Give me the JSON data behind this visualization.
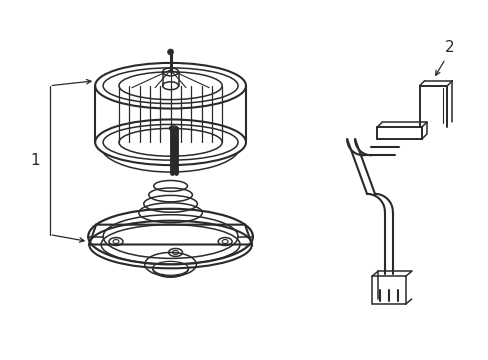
{
  "background_color": "#ffffff",
  "line_color": "#2a2a2a",
  "label_1": "1",
  "label_2": "2",
  "figsize": [
    4.89,
    3.6
  ],
  "dpi": 100
}
